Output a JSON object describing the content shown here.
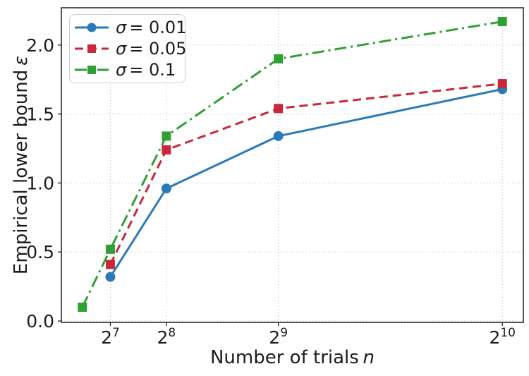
{
  "style": {
    "background": "#ffffff",
    "grid_color": "#c8c8c8",
    "axis_color": "#2b2b2b",
    "text_color": "#1c1c1c",
    "legend_border": "#cccccc"
  },
  "chart_data": {
    "type": "line",
    "title": "",
    "xlabel": {
      "text": "Number of trials",
      "var": "n"
    },
    "ylabel": {
      "text": "Empirical lower bound",
      "var": "ε"
    },
    "x_scale": "linear",
    "xlim": [
      16,
      1072
    ],
    "ylim": [
      -0.01,
      2.27
    ],
    "grid": {
      "visible": true,
      "style": "dotted"
    },
    "xticks": [
      {
        "value": 128,
        "base": "2",
        "exp": "7"
      },
      {
        "value": 256,
        "base": "2",
        "exp": "8"
      },
      {
        "value": 512,
        "base": "2",
        "exp": "9"
      },
      {
        "value": 1024,
        "base": "2",
        "exp": "10"
      }
    ],
    "yticks": [
      {
        "value": 0.0,
        "label": "0.0"
      },
      {
        "value": 0.5,
        "label": "0.5"
      },
      {
        "value": 1.0,
        "label": "1.0"
      },
      {
        "value": 1.5,
        "label": "1.5"
      },
      {
        "value": 2.0,
        "label": "2.0"
      }
    ],
    "legend": {
      "position": "upper-left",
      "items": [
        {
          "var": "σ",
          "rest": "= 0.01"
        },
        {
          "var": "σ",
          "rest": "= 0.05"
        },
        {
          "var": "σ",
          "rest": "= 0.1"
        }
      ]
    },
    "series": [
      {
        "name": "σ = 0.01",
        "color": "#2b79b7",
        "line_style": "solid",
        "marker": "circle",
        "x": [
          128,
          256,
          512,
          1024
        ],
        "y": [
          0.32,
          0.96,
          1.34,
          1.68
        ]
      },
      {
        "name": "σ = 0.05",
        "color": "#c9283a",
        "line_style": "dashed",
        "marker": "square",
        "x": [
          128,
          256,
          512,
          1024
        ],
        "y": [
          0.41,
          1.24,
          1.54,
          1.72
        ]
      },
      {
        "name": "σ = 0.1",
        "color": "#31a033",
        "line_style": "dashdot",
        "marker": "square",
        "x": [
          64,
          128,
          256,
          512,
          1024
        ],
        "y": [
          0.1,
          0.52,
          1.34,
          1.9,
          2.17
        ]
      }
    ]
  }
}
